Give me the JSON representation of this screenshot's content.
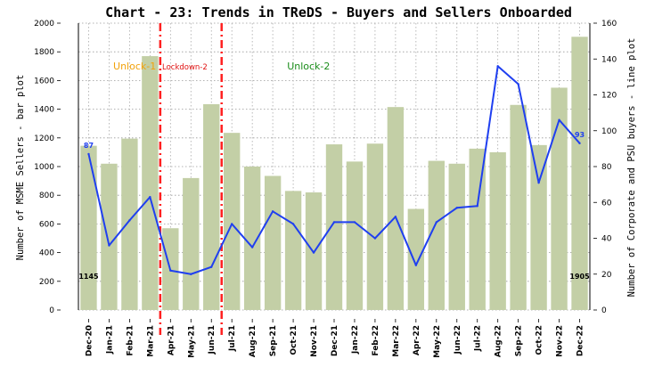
{
  "chart_data": {
    "type": "bar+line",
    "title": "Chart - 23: Trends in TReDS - Buyers and Sellers Onboarded",
    "ylabel": "Number of MSME Sellers - bar plot",
    "y2label": "Number of Corporate and PSU buyers - line plot",
    "categories": [
      "Dec-20",
      "Jan-21",
      "Feb-21",
      "Mar-21",
      "Apr-21",
      "May-21",
      "Jun-21",
      "Jul-21",
      "Aug-21",
      "Sep-21",
      "Oct-21",
      "Nov-21",
      "Dec-21",
      "Jan-22",
      "Feb-22",
      "Mar-22",
      "Apr-22",
      "May-22",
      "Jun-22",
      "Jul-22",
      "Aug-22",
      "Sep-22",
      "Oct-22",
      "Nov-22",
      "Dec-22"
    ],
    "bar_series": {
      "name": "MSME Sellers",
      "color": "#c3cfa6",
      "values": [
        1145,
        1020,
        1195,
        1770,
        570,
        920,
        1435,
        1235,
        1000,
        935,
        830,
        820,
        1155,
        1035,
        1160,
        1415,
        705,
        1040,
        1020,
        1125,
        1100,
        1430,
        1150,
        1550,
        1905
      ]
    },
    "line_series": {
      "name": "Corporate and PSU buyers",
      "color": "#1f3ff0",
      "values": [
        87,
        36,
        50,
        63,
        22,
        20,
        24,
        48,
        35,
        55,
        48,
        32,
        49,
        49,
        40,
        52,
        25,
        49,
        57,
        58,
        136,
        126,
        71,
        106,
        93
      ]
    },
    "ylim": [
      0,
      2000
    ],
    "yticks": [
      0,
      200,
      400,
      600,
      800,
      1000,
      1200,
      1400,
      1600,
      1800,
      2000
    ],
    "y2lim": [
      0,
      160
    ],
    "y2ticks": [
      0,
      20,
      40,
      60,
      80,
      100,
      120,
      140,
      160
    ],
    "grid": true,
    "data_labels": [
      {
        "series": "bar",
        "index": 0,
        "text": "1145"
      },
      {
        "series": "bar",
        "index": 24,
        "text": "1905"
      },
      {
        "series": "line",
        "index": 0,
        "text": "87"
      },
      {
        "series": "line",
        "index": 24,
        "text": "93"
      }
    ],
    "vlines": [
      {
        "after_index": 3,
        "color": "#ff2020"
      },
      {
        "after_index": 6,
        "color": "#ff2020"
      }
    ],
    "annotations": [
      {
        "text": "Unlock-1",
        "color": "#f2a20a",
        "near_index": 2
      },
      {
        "text": "Lockdown-2",
        "color": "#e01010",
        "near_index": 5
      },
      {
        "text": "Unlock-2",
        "color": "#1a8c1a",
        "near_index": 10
      }
    ]
  }
}
